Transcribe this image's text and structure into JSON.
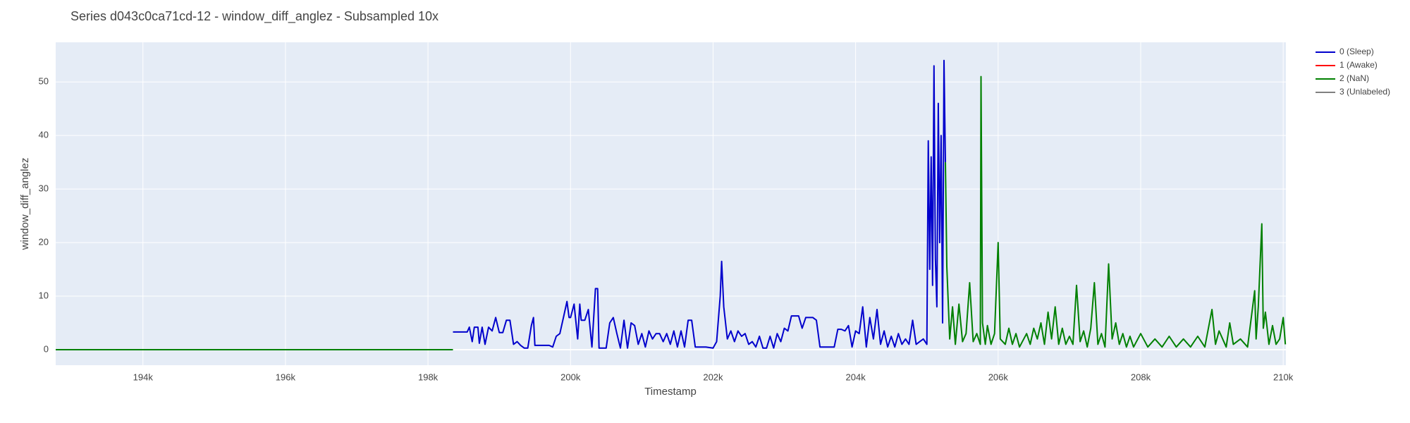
{
  "chart_data": {
    "type": "line",
    "title": "Series d043c0ca71cd-12 - window_diff_anglez - Subsampled 10x",
    "x_label": "Timestamp",
    "y_label": "window_diff_anglez",
    "xlim": [
      192776,
      210038
    ],
    "ylim": [
      -2.9,
      57.4
    ],
    "xticks": [
      {
        "value": 194000,
        "label": "194k"
      },
      {
        "value": 196000,
        "label": "196k"
      },
      {
        "value": 198000,
        "label": "198k"
      },
      {
        "value": 200000,
        "label": "200k"
      },
      {
        "value": 202000,
        "label": "202k"
      },
      {
        "value": 204000,
        "label": "204k"
      },
      {
        "value": 206000,
        "label": "206k"
      },
      {
        "value": 208000,
        "label": "208k"
      },
      {
        "value": 210000,
        "label": "210k"
      }
    ],
    "yticks": [
      0,
      10,
      20,
      30,
      40,
      50
    ],
    "grid": true,
    "legend": "outside-top-right",
    "series": [
      {
        "name": "0 (Sleep)",
        "color": "#0000cc",
        "x": [
          198350,
          198550,
          198580,
          198620,
          198650,
          198700,
          198720,
          198760,
          198800,
          198850,
          198900,
          198950,
          199000,
          199050,
          199100,
          199150,
          199200,
          199250,
          199300,
          199350,
          199400,
          199450,
          199480,
          199500,
          199600,
          199700,
          199750,
          199800,
          199850,
          199900,
          199950,
          199980,
          200000,
          200050,
          200100,
          200130,
          200150,
          200200,
          200250,
          200300,
          200350,
          200380,
          200400,
          200500,
          200550,
          200600,
          200650,
          200700,
          200750,
          200800,
          200850,
          200900,
          200950,
          201000,
          201050,
          201100,
          201150,
          201200,
          201250,
          201300,
          201350,
          201400,
          201450,
          201500,
          201550,
          201600,
          201650,
          201700,
          201750,
          201800,
          201900,
          202000,
          202050,
          202100,
          202120,
          202150,
          202200,
          202250,
          202300,
          202350,
          202400,
          202450,
          202500,
          202550,
          202600,
          202650,
          202700,
          202750,
          202800,
          202850,
          202900,
          202950,
          203000,
          203050,
          203100,
          203200,
          203250,
          203300,
          203400,
          203450,
          203500,
          203600,
          203700,
          203750,
          203800,
          203850,
          203900,
          203950,
          204000,
          204050,
          204100,
          204150,
          204200,
          204250,
          204300,
          204350,
          204400,
          204450,
          204500,
          204550,
          204600,
          204650,
          204700,
          204750,
          204800,
          204850,
          204900,
          204950,
          205000,
          205020,
          205040,
          205060,
          205080,
          205100,
          205120,
          205140,
          205160,
          205180,
          205200,
          205220,
          205240,
          205260
        ],
        "values": [
          3.3,
          3.3,
          4.2,
          1.5,
          4.2,
          4.2,
          1.2,
          4.2,
          1.0,
          4.2,
          3.5,
          6.0,
          3.2,
          3.2,
          5.5,
          5.5,
          1.0,
          1.5,
          0.8,
          0.3,
          0.3,
          4.5,
          6.0,
          0.8,
          0.8,
          0.8,
          0.5,
          2.5,
          3.0,
          6.0,
          9.0,
          6.0,
          6.0,
          8.5,
          2.0,
          8.5,
          5.5,
          5.5,
          7.5,
          0.5,
          11.4,
          11.4,
          0.3,
          0.3,
          5.0,
          6.0,
          3.0,
          0.3,
          5.5,
          0.3,
          5.0,
          4.5,
          1.0,
          3.0,
          0.5,
          3.5,
          2.0,
          3.0,
          3.0,
          1.5,
          3.0,
          1.0,
          3.5,
          0.5,
          3.5,
          0.5,
          5.5,
          5.5,
          0.5,
          0.5,
          0.5,
          0.3,
          1.5,
          10,
          16.5,
          8,
          2.0,
          3.5,
          1.5,
          3.5,
          2.5,
          3.0,
          1.0,
          1.5,
          0.5,
          2.5,
          0.3,
          0.3,
          2.5,
          0.3,
          3.0,
          1.5,
          4.0,
          3.5,
          6.3,
          6.3,
          4.0,
          6.0,
          6.0,
          5.5,
          0.5,
          0.5,
          0.5,
          3.8,
          3.8,
          3.5,
          4.5,
          0.5,
          3.5,
          3.0,
          8.0,
          0.5,
          6.0,
          2.0,
          7.5,
          1.0,
          3.5,
          0.5,
          2.5,
          0.5,
          3.0,
          1.0,
          2.0,
          1.0,
          5.5,
          1.0,
          1.5,
          2.0,
          1.0,
          39,
          15,
          36,
          12,
          53,
          17,
          8,
          46,
          20,
          40,
          5,
          54,
          35
        ]
      },
      {
        "name": "1 (Awake)",
        "color": "#ff0000",
        "x": [],
        "values": []
      },
      {
        "name": "2 (NaN)",
        "color": "#008000",
        "x": [
          192776,
          198350,
          198800,
          205260,
          205280,
          205320,
          205360,
          205400,
          205450,
          205500,
          205550,
          205600,
          205650,
          205700,
          205750,
          205760,
          205780,
          205820,
          205850,
          205900,
          205950,
          206000,
          206030,
          206100,
          206150,
          206200,
          206250,
          206300,
          206400,
          206450,
          206500,
          206550,
          206600,
          206650,
          206700,
          206750,
          206800,
          206850,
          206900,
          206950,
          207000,
          207050,
          207100,
          207150,
          207200,
          207250,
          207300,
          207350,
          207400,
          207450,
          207500,
          207550,
          207600,
          207650,
          207700,
          207750,
          207800,
          207850,
          207900,
          208000,
          208100,
          208200,
          208300,
          208400,
          208500,
          208600,
          208700,
          208800,
          208900,
          209000,
          209050,
          209100,
          209200,
          209250,
          209300,
          209400,
          209500,
          209600,
          209620,
          209650,
          209700,
          209720,
          209750,
          209800,
          209850,
          209900,
          209950,
          210000,
          210030
        ],
        "values": [
          0,
          0,
          null,
          35,
          15.5,
          2,
          8,
          1,
          8.5,
          1.5,
          3,
          12.5,
          1.5,
          3,
          1,
          51,
          5,
          1,
          4.5,
          1,
          3,
          20,
          2,
          1,
          4,
          1,
          3,
          0.5,
          3,
          1,
          4,
          2,
          5,
          1,
          7,
          2,
          8,
          1,
          4,
          1,
          2.5,
          1,
          12,
          1.5,
          3.5,
          0.5,
          4,
          12.5,
          1,
          3,
          0.5,
          16,
          2,
          5,
          1,
          3,
          0.5,
          2.5,
          0.5,
          3,
          0.5,
          2,
          0.5,
          2.5,
          0.5,
          2,
          0.5,
          2.5,
          0.5,
          7.5,
          1,
          3.5,
          0.5,
          5,
          1,
          2,
          0.5,
          11,
          2,
          8,
          23.5,
          4,
          7,
          1,
          4.5,
          1,
          2,
          6,
          1
        ]
      },
      {
        "name": "3 (Unlabeled)",
        "color": "#808080",
        "x": [],
        "values": []
      }
    ]
  }
}
